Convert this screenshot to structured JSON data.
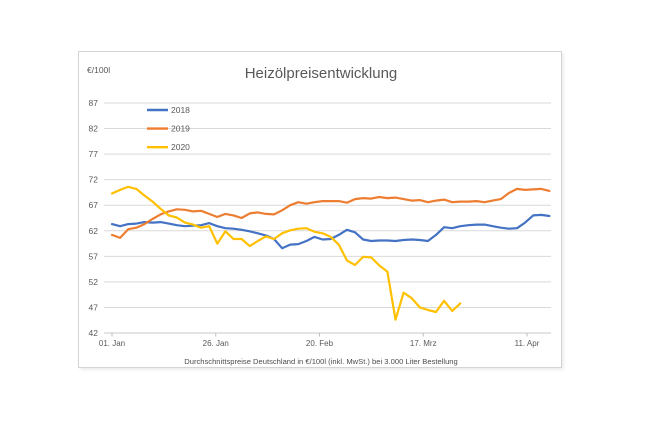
{
  "chart": {
    "title": "Heizölpreisentwicklung",
    "unit_label": "€/100l",
    "caption": "Durchschnittspreise Deutschland in €/100l (inkl. MwSt.) bei 3.000 Liter Bestellung"
  },
  "chart_data": {
    "type": "line",
    "title": "Heizölpreisentwicklung",
    "ylabel": "€/100l",
    "ylim": [
      42,
      87
    ],
    "yticks": [
      42,
      47,
      52,
      57,
      62,
      67,
      72,
      77,
      82,
      87
    ],
    "xtick_labels": [
      "01. Jan",
      "26. Jan",
      "20. Feb",
      "17. Mrz",
      "11. Apr"
    ],
    "xtick_days": [
      0,
      25,
      50,
      75,
      100
    ],
    "x_is_day_offset_from": "01. Jan",
    "days": [
      0,
      2,
      4,
      6,
      8,
      10,
      12,
      14,
      16,
      18,
      20,
      22,
      24,
      26,
      28,
      30,
      32,
      34,
      36,
      38,
      40,
      42,
      44,
      46,
      48,
      50,
      52,
      54,
      56,
      58,
      60,
      62,
      64,
      66,
      68,
      70,
      72,
      74,
      76,
      78,
      80,
      82,
      84,
      86,
      88,
      90,
      92,
      94,
      96,
      98,
      100,
      102,
      104,
      106,
      108
    ],
    "grid": true,
    "legend_position": "top-left-inside",
    "legend_entries": [
      "2018",
      "2019",
      "2020"
    ],
    "caption": "Durchschnittspreise Deutschland in €/100l (inkl. MwSt.) bei 3.000 Liter Bestellung",
    "series": [
      {
        "name": "2018",
        "color": "#4472C4",
        "values": [
          63.3,
          62.9,
          63.3,
          63.4,
          63.7,
          63.6,
          63.7,
          63.4,
          63.1,
          62.9,
          63.0,
          63.1,
          63.5,
          62.9,
          62.5,
          62.4,
          62.2,
          61.9,
          61.5,
          61.1,
          60.4,
          58.6,
          59.3,
          59.4,
          60.0,
          60.8,
          60.3,
          60.4,
          61.2,
          62.2,
          61.7,
          60.3,
          60.0,
          60.1,
          60.1,
          60.0,
          60.2,
          60.3,
          60.2,
          60.0,
          61.2,
          62.7,
          62.5,
          62.9,
          63.1,
          63.2,
          63.2,
          62.9,
          62.6,
          62.4,
          62.5,
          63.6,
          65.0,
          65.1,
          64.9
        ]
      },
      {
        "name": "2019",
        "color": "#ED7D31",
        "values": [
          61.2,
          60.6,
          62.3,
          62.6,
          63.3,
          64.3,
          65.2,
          65.8,
          66.2,
          66.1,
          65.8,
          65.9,
          65.3,
          64.7,
          65.3,
          65.0,
          64.5,
          65.4,
          65.6,
          65.3,
          65.2,
          66.0,
          67.0,
          67.6,
          67.3,
          67.6,
          67.8,
          67.8,
          67.8,
          67.5,
          68.2,
          68.4,
          68.3,
          68.6,
          68.4,
          68.5,
          68.2,
          67.9,
          68.0,
          67.6,
          67.9,
          68.1,
          67.6,
          67.7,
          67.7,
          67.8,
          67.6,
          67.9,
          68.2,
          69.4,
          70.2,
          70.0,
          70.1,
          70.2,
          69.8
        ]
      },
      {
        "name": "2020",
        "color": "#FFC000",
        "values": [
          69.3,
          70.0,
          70.6,
          70.2,
          68.9,
          67.7,
          66.3,
          65.0,
          64.6,
          63.6,
          63.2,
          62.6,
          62.9,
          59.5,
          61.9,
          60.4,
          60.4,
          59.0,
          60.0,
          60.9,
          60.4,
          61.5,
          62.1,
          62.4,
          62.5,
          61.8,
          61.5,
          60.8,
          59.3,
          56.2,
          55.3,
          56.9,
          56.8,
          55.2,
          54.0,
          44.6,
          49.9,
          48.8,
          47.0,
          46.5,
          46.1,
          48.3,
          46.3,
          47.8
        ]
      }
    ]
  }
}
